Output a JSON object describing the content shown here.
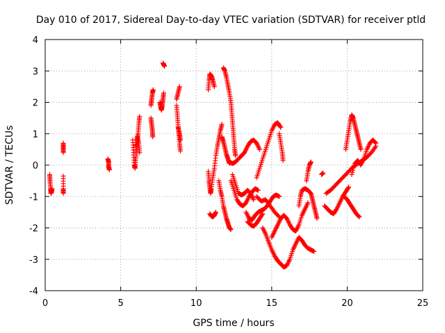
{
  "chart_data": {
    "type": "scatter",
    "title": "Day 010 of 2017, Sidereal Day-to-day VTEC variation (SDTVAR) for receiver ptld",
    "xlabel": "GPS time / hours",
    "ylabel": "SDTVAR / TECUs",
    "xlim": [
      0,
      25
    ],
    "ylim": [
      -4,
      4
    ],
    "xticks": [
      0,
      5,
      10,
      15,
      20,
      25
    ],
    "yticks": [
      -4,
      -3,
      -2,
      -1,
      0,
      1,
      2,
      3,
      4
    ],
    "grid": true,
    "marker": "plus",
    "color": "#ff0000",
    "segments": [
      [
        [
          0.3,
          -0.3
        ],
        [
          0.32,
          -0.5
        ],
        [
          0.35,
          -0.75
        ],
        [
          0.38,
          -0.9
        ],
        [
          0.42,
          -0.85
        ],
        [
          0.45,
          -0.75
        ]
      ],
      [
        [
          1.2,
          0.7
        ],
        [
          1.2,
          0.55
        ],
        [
          1.2,
          0.4
        ]
      ],
      [
        [
          1.2,
          -0.35
        ],
        [
          1.2,
          -0.75
        ],
        [
          1.2,
          -0.9
        ]
      ],
      [
        [
          4.15,
          0.2
        ],
        [
          4.2,
          0.1
        ],
        [
          4.2,
          -0.05
        ],
        [
          4.25,
          -0.15
        ]
      ],
      [
        [
          5.8,
          0.8
        ],
        [
          5.85,
          0.4
        ],
        [
          5.9,
          0.0
        ],
        [
          5.95,
          -0.1
        ],
        [
          6.0,
          0.2
        ],
        [
          6.05,
          0.5
        ],
        [
          6.1,
          0.8
        ],
        [
          6.15,
          1.0
        ],
        [
          6.2,
          1.3
        ],
        [
          6.25,
          1.55
        ]
      ],
      [
        [
          6.0,
          0.6
        ],
        [
          6.1,
          0.9
        ],
        [
          6.2,
          0.7
        ],
        [
          6.25,
          0.4
        ]
      ],
      [
        [
          7.0,
          1.9
        ],
        [
          7.05,
          2.1
        ],
        [
          7.1,
          2.3
        ],
        [
          7.15,
          2.4
        ]
      ],
      [
        [
          7.0,
          1.5
        ],
        [
          7.05,
          1.3
        ],
        [
          7.1,
          1.1
        ],
        [
          7.12,
          0.9
        ]
      ],
      [
        [
          7.6,
          2.0
        ],
        [
          7.65,
          1.85
        ],
        [
          7.7,
          1.75
        ],
        [
          7.75,
          1.9
        ],
        [
          7.8,
          2.1
        ],
        [
          7.85,
          2.3
        ]
      ],
      [
        [
          7.8,
          3.25
        ],
        [
          7.85,
          3.2
        ],
        [
          7.9,
          3.15
        ]
      ],
      [
        [
          8.7,
          2.1
        ],
        [
          8.8,
          2.3
        ],
        [
          8.9,
          2.5
        ]
      ],
      [
        [
          8.7,
          1.9
        ],
        [
          8.75,
          1.6
        ],
        [
          8.8,
          1.3
        ],
        [
          8.85,
          1.0
        ],
        [
          8.9,
          0.7
        ],
        [
          8.95,
          0.45
        ]
      ],
      [
        [
          8.8,
          1.2
        ],
        [
          8.9,
          1.0
        ],
        [
          8.95,
          0.8
        ]
      ],
      [
        [
          10.8,
          2.4
        ],
        [
          10.85,
          2.7
        ],
        [
          10.9,
          2.9
        ],
        [
          11.0,
          2.85
        ],
        [
          11.1,
          2.7
        ],
        [
          11.2,
          2.5
        ]
      ],
      [
        [
          10.8,
          -0.2
        ],
        [
          10.85,
          -0.5
        ],
        [
          10.9,
          -0.7
        ],
        [
          10.95,
          -0.9
        ],
        [
          11.0,
          -0.75
        ],
        [
          11.1,
          -0.4
        ],
        [
          11.2,
          -0.1
        ],
        [
          11.3,
          0.3
        ],
        [
          11.4,
          0.6
        ],
        [
          11.5,
          0.85
        ],
        [
          11.6,
          1.1
        ],
        [
          11.7,
          1.3
        ]
      ],
      [
        [
          10.9,
          -1.55
        ],
        [
          11.0,
          -1.62
        ],
        [
          11.1,
          -1.65
        ],
        [
          11.2,
          -1.6
        ],
        [
          11.3,
          -1.5
        ]
      ],
      [
        [
          11.5,
          -0.5
        ],
        [
          11.6,
          -0.8
        ],
        [
          11.7,
          -1.0
        ],
        [
          11.8,
          -1.3
        ],
        [
          11.9,
          -1.5
        ],
        [
          12.0,
          -1.7
        ],
        [
          12.1,
          -1.85
        ],
        [
          12.2,
          -2.0
        ],
        [
          12.3,
          -2.05
        ]
      ],
      [
        [
          11.7,
          0.9
        ],
        [
          11.8,
          0.75
        ],
        [
          11.9,
          0.55
        ],
        [
          12.0,
          0.35
        ],
        [
          12.1,
          0.2
        ],
        [
          12.2,
          0.05
        ]
      ],
      [
        [
          11.8,
          3.1
        ],
        [
          11.9,
          3.0
        ],
        [
          12.0,
          2.8
        ],
        [
          12.1,
          2.55
        ],
        [
          12.2,
          2.3
        ],
        [
          12.3,
          2.0
        ],
        [
          12.35,
          1.7
        ],
        [
          12.4,
          1.4
        ],
        [
          12.45,
          1.1
        ],
        [
          12.5,
          0.8
        ],
        [
          12.55,
          0.5
        ],
        [
          12.6,
          0.3
        ]
      ],
      [
        [
          12.2,
          0.1
        ],
        [
          12.4,
          0.05
        ],
        [
          12.6,
          0.1
        ],
        [
          12.8,
          0.2
        ],
        [
          13.0,
          0.3
        ],
        [
          13.2,
          0.4
        ],
        [
          13.4,
          0.6
        ],
        [
          13.6,
          0.75
        ],
        [
          13.8,
          0.8
        ],
        [
          14.0,
          0.7
        ],
        [
          14.2,
          0.5
        ]
      ],
      [
        [
          12.3,
          -0.5
        ],
        [
          12.5,
          -0.8
        ],
        [
          12.7,
          -1.1
        ],
        [
          12.9,
          -1.25
        ],
        [
          13.1,
          -1.3
        ],
        [
          13.3,
          -1.2
        ],
        [
          13.5,
          -1.0
        ],
        [
          13.7,
          -0.85
        ],
        [
          13.9,
          -0.75
        ],
        [
          14.1,
          -0.8
        ]
      ],
      [
        [
          12.4,
          -0.3
        ],
        [
          12.6,
          -0.6
        ],
        [
          12.8,
          -0.9
        ],
        [
          13.0,
          -0.95
        ],
        [
          13.2,
          -0.9
        ],
        [
          13.4,
          -0.8
        ],
        [
          13.6,
          -0.9
        ],
        [
          13.8,
          -1.1
        ]
      ],
      [
        [
          13.3,
          -1.5
        ],
        [
          13.5,
          -1.7
        ],
        [
          13.7,
          -1.75
        ],
        [
          13.9,
          -1.6
        ],
        [
          14.1,
          -1.5
        ],
        [
          14.3,
          -1.45
        ],
        [
          14.5,
          -1.4
        ],
        [
          14.7,
          -1.3
        ],
        [
          14.9,
          -1.15
        ],
        [
          15.1,
          -1.0
        ],
        [
          15.3,
          -0.95
        ],
        [
          15.5,
          -1.0
        ]
      ],
      [
        [
          13.4,
          -1.8
        ],
        [
          13.6,
          -1.9
        ],
        [
          13.8,
          -1.95
        ],
        [
          14.0,
          -1.85
        ],
        [
          14.2,
          -1.7
        ],
        [
          14.4,
          -1.55
        ]
      ],
      [
        [
          14.0,
          -0.4
        ],
        [
          14.2,
          -0.1
        ],
        [
          14.4,
          0.2
        ],
        [
          14.6,
          0.5
        ],
        [
          14.8,
          0.8
        ],
        [
          15.0,
          1.1
        ],
        [
          15.2,
          1.3
        ],
        [
          15.4,
          1.35
        ],
        [
          15.6,
          1.2
        ]
      ],
      [
        [
          15.5,
          1.0
        ],
        [
          15.6,
          0.7
        ],
        [
          15.7,
          0.4
        ],
        [
          15.75,
          0.15
        ]
      ],
      [
        [
          14.4,
          -2.0
        ],
        [
          14.6,
          -2.2
        ],
        [
          14.8,
          -2.45
        ],
        [
          15.0,
          -2.7
        ],
        [
          15.2,
          -2.9
        ],
        [
          15.4,
          -3.05
        ],
        [
          15.6,
          -3.15
        ],
        [
          15.8,
          -3.25
        ],
        [
          16.0,
          -3.2
        ],
        [
          16.2,
          -3.0
        ],
        [
          16.4,
          -2.7
        ],
        [
          16.6,
          -2.5
        ],
        [
          16.8,
          -2.3
        ],
        [
          17.0,
          -2.4
        ],
        [
          17.2,
          -2.55
        ],
        [
          17.4,
          -2.65
        ],
        [
          17.6,
          -2.7
        ],
        [
          17.8,
          -2.75
        ]
      ],
      [
        [
          15.0,
          -2.3
        ],
        [
          15.2,
          -2.1
        ],
        [
          15.4,
          -1.9
        ],
        [
          15.6,
          -1.7
        ],
        [
          15.8,
          -1.6
        ],
        [
          16.0,
          -1.7
        ],
        [
          16.2,
          -1.9
        ],
        [
          16.4,
          -2.05
        ],
        [
          16.6,
          -2.1
        ],
        [
          16.8,
          -1.9
        ],
        [
          17.0,
          -1.6
        ],
        [
          17.2,
          -1.4
        ],
        [
          17.4,
          -1.2
        ]
      ],
      [
        [
          14.0,
          -1.0
        ],
        [
          14.3,
          -1.15
        ],
        [
          14.6,
          -1.1
        ],
        [
          14.9,
          -1.3
        ],
        [
          15.2,
          -1.5
        ],
        [
          15.5,
          -1.65
        ]
      ],
      [
        [
          16.8,
          -1.3
        ],
        [
          16.9,
          -1.0
        ],
        [
          17.0,
          -0.8
        ],
        [
          17.2,
          -0.75
        ],
        [
          17.4,
          -0.8
        ],
        [
          17.6,
          -0.9
        ],
        [
          17.7,
          -1.1
        ],
        [
          17.8,
          -1.3
        ],
        [
          17.9,
          -1.5
        ],
        [
          18.0,
          -1.7
        ]
      ],
      [
        [
          17.3,
          -0.5
        ],
        [
          17.4,
          -0.2
        ],
        [
          17.5,
          0.0
        ],
        [
          17.6,
          0.1
        ]
      ],
      [
        [
          18.3,
          -0.3
        ],
        [
          18.4,
          -0.25
        ]
      ],
      [
        [
          18.5,
          -1.3
        ],
        [
          18.7,
          -1.4
        ],
        [
          18.9,
          -1.5
        ],
        [
          19.1,
          -1.55
        ],
        [
          19.3,
          -1.4
        ],
        [
          19.5,
          -1.2
        ],
        [
          19.7,
          -1.0
        ],
        [
          19.9,
          -0.85
        ],
        [
          20.1,
          -0.7
        ]
      ],
      [
        [
          18.6,
          -0.9
        ],
        [
          18.9,
          -0.8
        ],
        [
          19.2,
          -0.65
        ],
        [
          19.5,
          -0.5
        ],
        [
          19.8,
          -0.35
        ],
        [
          20.1,
          -0.2
        ],
        [
          20.4,
          -0.05
        ],
        [
          20.7,
          0.05
        ],
        [
          21.0,
          0.15
        ],
        [
          21.3,
          0.25
        ],
        [
          21.6,
          0.4
        ],
        [
          21.9,
          0.6
        ]
      ],
      [
        [
          19.8,
          -1.0
        ],
        [
          20.0,
          -1.1
        ],
        [
          20.2,
          -1.25
        ],
        [
          20.4,
          -1.4
        ],
        [
          20.6,
          -1.55
        ],
        [
          20.8,
          -1.65
        ]
      ],
      [
        [
          19.9,
          0.5
        ],
        [
          20.0,
          0.8
        ],
        [
          20.1,
          1.1
        ],
        [
          20.2,
          1.4
        ],
        [
          20.3,
          1.6
        ],
        [
          20.4,
          1.5
        ],
        [
          20.5,
          1.3
        ],
        [
          20.6,
          1.1
        ],
        [
          20.7,
          0.9
        ],
        [
          20.8,
          0.7
        ],
        [
          20.9,
          0.5
        ]
      ],
      [
        [
          20.3,
          -0.3
        ],
        [
          20.5,
          0.05
        ],
        [
          20.7,
          0.15
        ],
        [
          20.9,
          0.0
        ],
        [
          21.1,
          0.2
        ],
        [
          21.3,
          0.5
        ],
        [
          21.5,
          0.7
        ],
        [
          21.7,
          0.8
        ],
        [
          21.9,
          0.7
        ]
      ]
    ]
  }
}
